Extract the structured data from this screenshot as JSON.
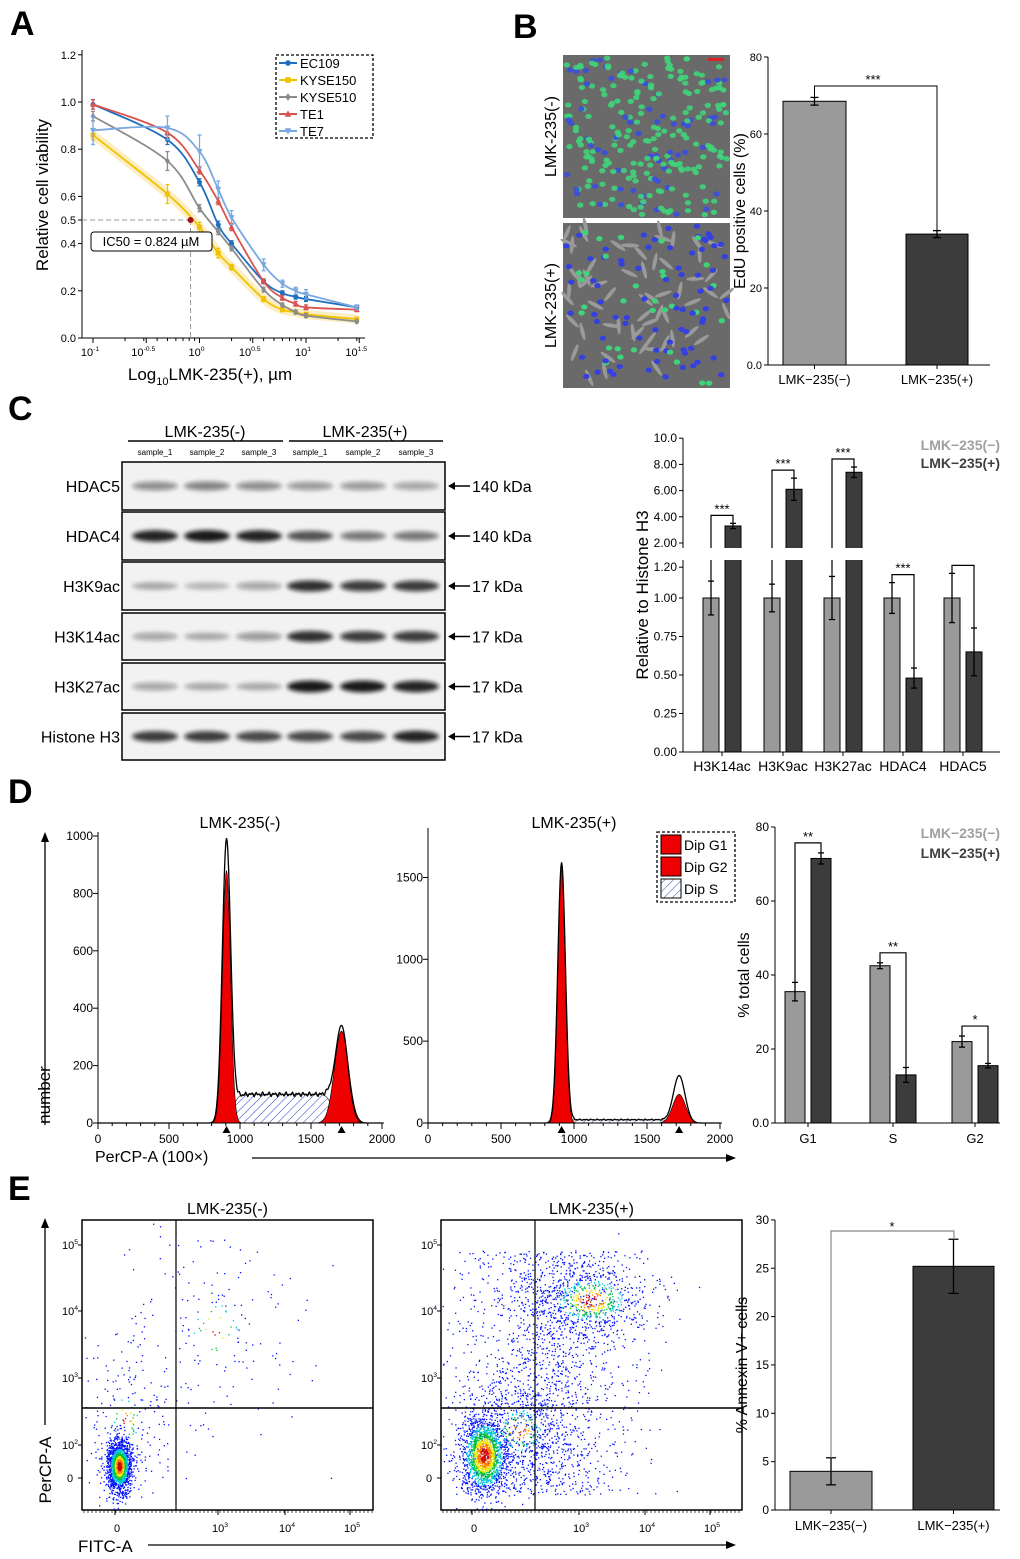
{
  "panels": {
    "A": "A",
    "B": "B",
    "C": "C",
    "D": "D",
    "E": "E"
  },
  "colors": {
    "ec109": "#1f6fc0",
    "kyse150": "#f2c200",
    "kyse510": "#8c8c8c",
    "te1": "#d9534f",
    "te7": "#7aa8e0",
    "control_bar": "#9a9a9a",
    "treated_bar": "#3c3c3c",
    "fit_red": "#ee0000",
    "s_phase_hatch": "#3344cc"
  },
  "chart_data": [
    {
      "id": "A",
      "type": "line",
      "ylabel": "Relative cell viability",
      "xlabel_prefix": "Log",
      "xlabel_sub": "10",
      "xlabel_rest": "LMK-235(+), µm",
      "x_scale": "log10",
      "xlim_log10": [
        -1,
        1.5
      ],
      "ylim": [
        0,
        1.2
      ],
      "yticks": [
        "0.0",
        "0.2",
        "0.4",
        "0.5",
        "0.6",
        "0.8",
        "1.0",
        "1.2"
      ],
      "xticks": [
        {
          "base": "10",
          "exp": "-1"
        },
        {
          "base": "10",
          "exp": "-0.5"
        },
        {
          "base": "10",
          "exp": "0"
        },
        {
          "base": "10",
          "exp": "0.5"
        },
        {
          "base": "10",
          "exp": "1"
        },
        {
          "base": "10",
          "exp": "1.5"
        }
      ],
      "x": [
        0.1,
        0.5,
        1,
        1.5,
        2,
        4,
        6,
        8,
        10,
        30
      ],
      "series": [
        {
          "name": "EC109",
          "marker": "circle",
          "values": [
            0.99,
            0.84,
            0.66,
            0.48,
            0.4,
            0.24,
            0.19,
            0.175,
            0.165,
            0.13
          ],
          "errors": [
            0.02,
            0.02,
            0.015,
            0.015,
            0.012,
            0.01,
            0.01,
            0.01,
            0.01,
            0.008
          ]
        },
        {
          "name": "KYSE150",
          "marker": "square",
          "values": [
            0.86,
            0.61,
            0.47,
            0.36,
            0.3,
            0.165,
            0.12,
            0.11,
            0.1,
            0.08
          ],
          "errors": [
            0.02,
            0.04,
            0.02,
            0.02,
            0.012,
            0.01,
            0.008,
            0.008,
            0.008,
            0.008
          ]
        },
        {
          "name": "KYSE510",
          "marker": "diamond",
          "values": [
            0.94,
            0.75,
            0.55,
            0.45,
            0.38,
            0.205,
            0.14,
            0.11,
            0.095,
            0.07
          ],
          "errors": [
            0.02,
            0.04,
            0.015,
            0.012,
            0.01,
            0.01,
            0.008,
            0.008,
            0.008,
            0.006
          ]
        },
        {
          "name": "TE1",
          "marker": "triangle-up",
          "values": [
            0.99,
            0.87,
            0.71,
            0.58,
            0.47,
            0.24,
            0.17,
            0.145,
            0.13,
            0.12
          ],
          "errors": [
            0.02,
            0.02,
            0.015,
            0.015,
            0.015,
            0.01,
            0.01,
            0.01,
            0.01,
            0.008
          ]
        },
        {
          "name": "TE7",
          "marker": "triangle-down",
          "values": [
            0.88,
            0.89,
            0.79,
            0.63,
            0.51,
            0.31,
            0.23,
            0.2,
            0.185,
            0.13
          ],
          "errors": [
            0.06,
            0.05,
            0.07,
            0.035,
            0.03,
            0.025,
            0.015,
            0.015,
            0.02,
            0.01
          ]
        }
      ],
      "annotation": "IC50 = 0.824 µM",
      "ic50_point": {
        "x": 0.824,
        "y": 0.5
      },
      "legend_position": "top-right"
    },
    {
      "id": "B",
      "type": "bar",
      "image_labels": [
        "LMK-235(-)",
        "LMK-235(+)"
      ],
      "categories": [
        "LMK−235(−)",
        "LMK−235(+)"
      ],
      "values": [
        68.5,
        34
      ],
      "errors": [
        1.0,
        0.9
      ],
      "ylabel": "EdU positive cells (%)",
      "ylim": [
        0,
        80
      ],
      "yticks": [
        "0.0",
        "20",
        "40",
        "60",
        "80"
      ],
      "significance": "***"
    },
    {
      "id": "C-blot",
      "type": "table",
      "groups": [
        "LMK-235(-)",
        "LMK-235(+)"
      ],
      "samples": [
        "sample_1",
        "sample_2",
        "sample_3",
        "sample_1",
        "sample_2",
        "sample_3"
      ],
      "rows": [
        {
          "protein": "HDAC5",
          "size": "140 kDa",
          "band_intensity": [
            0.45,
            0.5,
            0.45,
            0.4,
            0.4,
            0.35
          ]
        },
        {
          "protein": "HDAC4",
          "size": "140 kDa",
          "band_intensity": [
            0.9,
            0.95,
            0.9,
            0.7,
            0.55,
            0.55
          ]
        },
        {
          "protein": "H3K9ac",
          "size": "17 kDa",
          "band_intensity": [
            0.3,
            0.25,
            0.35,
            0.85,
            0.8,
            0.8
          ]
        },
        {
          "protein": "H3K14ac",
          "size": "17 kDa",
          "band_intensity": [
            0.35,
            0.3,
            0.4,
            0.85,
            0.8,
            0.8
          ]
        },
        {
          "protein": "H3K27ac",
          "size": "17 kDa",
          "band_intensity": [
            0.35,
            0.3,
            0.3,
            0.95,
            0.95,
            0.9
          ]
        },
        {
          "protein": "Histone H3",
          "size": "17 kDa",
          "band_intensity": [
            0.8,
            0.8,
            0.75,
            0.75,
            0.75,
            0.9
          ]
        }
      ]
    },
    {
      "id": "C",
      "type": "bar",
      "categories": [
        "H3K14ac",
        "H3K9ac",
        "H3K27ac",
        "HDAC4",
        "HDAC5"
      ],
      "series": [
        {
          "name": "LMK−235(−)",
          "values": [
            1.0,
            1.0,
            1.0,
            1.0,
            1.0
          ],
          "errors": [
            0.11,
            0.09,
            0.14,
            0.1,
            0.16
          ]
        },
        {
          "name": "LMK−235(+)",
          "values": [
            3.3,
            6.1,
            7.4,
            0.48,
            0.65
          ],
          "errors": [
            0.2,
            0.85,
            0.4,
            0.065,
            0.155
          ]
        }
      ],
      "ylabel": "Relative to Histone H3",
      "y_axis_break": [
        1.25,
        2.0
      ],
      "yticks_lower": [
        "0.00",
        "0.25",
        "0.50",
        "0.75",
        "1.00",
        "1.20"
      ],
      "yticks_upper": [
        "2.00",
        "4.00",
        "6.00",
        "8.00",
        "10.0"
      ],
      "significance": [
        "***",
        "***",
        "***",
        "***",
        "**"
      ],
      "legend_position": "top-right"
    },
    {
      "id": "D-left",
      "type": "area",
      "title": "LMK-235(-)",
      "ylabel": "number",
      "xlabel": "PerCP-A (100×)",
      "xlim": [
        0,
        2000
      ],
      "ylim": [
        0,
        1000
      ],
      "xticks": [
        "0",
        "500",
        "1000",
        "1500",
        "2000"
      ],
      "yticks": [
        "0",
        "200",
        "400",
        "600",
        "800",
        "1000"
      ],
      "components": {
        "G1": {
          "mean": 905,
          "sd": 28,
          "height": 880
        },
        "S": {
          "start": 950,
          "end": 1650,
          "height": 100
        },
        "G2": {
          "mean": 1715,
          "sd": 45,
          "height": 320
        }
      },
      "total_peaks": {
        "G1": 985,
        "G2": 340
      }
    },
    {
      "id": "D-right",
      "type": "area",
      "title": "LMK-235(+)",
      "xlim": [
        0,
        2000
      ],
      "ylim": [
        0,
        1700
      ],
      "xticks": [
        "0",
        "500",
        "1000",
        "1500",
        "2000"
      ],
      "yticks": [
        "0",
        "500",
        "1000",
        "1500"
      ],
      "components": {
        "G1": {
          "mean": 915,
          "sd": 25,
          "height": 1580
        },
        "S": {
          "start": 950,
          "end": 1650,
          "height": 20
        },
        "G2": {
          "mean": 1720,
          "sd": 40,
          "height": 175
        }
      },
      "total_peaks": {
        "G1": 1590,
        "G2": 290
      },
      "legend": [
        "Dip G1",
        "Dip G2",
        "Dip S"
      ],
      "legend_position": "top-right"
    },
    {
      "id": "D-bar",
      "type": "bar",
      "categories": [
        "G1",
        "S",
        "G2"
      ],
      "series": [
        {
          "name": "LMK−235(−)",
          "values": [
            35.5,
            42.5,
            22
          ],
          "errors": [
            2.5,
            0.8,
            1.5
          ]
        },
        {
          "name": "LMK−235(+)",
          "values": [
            71.5,
            13,
            15.5
          ],
          "errors": [
            1.5,
            2.0,
            0.6
          ]
        }
      ],
      "ylabel": "% total cells",
      "ylim": [
        0,
        80
      ],
      "yticks": [
        "0.0",
        "20",
        "40",
        "60",
        "80"
      ],
      "significance": [
        "**",
        "**",
        "*"
      ]
    },
    {
      "id": "E-left",
      "type": "scatter",
      "title": "LMK-235(-)",
      "xlabel": "FITC-A",
      "ylabel": "PerCP-A",
      "x_scale": "biexponential",
      "y_scale": "biexponential",
      "xticks": [
        {
          "base": "0",
          "exp": ""
        },
        {
          "base": "10",
          "exp": "3"
        },
        {
          "base": "10",
          "exp": "4"
        },
        {
          "base": "10",
          "exp": "5"
        }
      ],
      "yticks": [
        {
          "base": "0",
          "exp": ""
        },
        {
          "base": "10",
          "exp": "2"
        },
        {
          "base": "10",
          "exp": "3"
        },
        {
          "base": "10",
          "exp": "4"
        },
        {
          "base": "10",
          "exp": "5"
        }
      ]
    },
    {
      "id": "E-right",
      "type": "scatter",
      "title": "LMK-235(+)",
      "x_scale": "biexponential",
      "y_scale": "biexponential",
      "xticks": [
        {
          "base": "0",
          "exp": ""
        },
        {
          "base": "10",
          "exp": "3"
        },
        {
          "base": "10",
          "exp": "4"
        },
        {
          "base": "10",
          "exp": "5"
        }
      ],
      "yticks": [
        {
          "base": "0",
          "exp": ""
        },
        {
          "base": "10",
          "exp": "2"
        },
        {
          "base": "10",
          "exp": "3"
        },
        {
          "base": "10",
          "exp": "4"
        },
        {
          "base": "10",
          "exp": "5"
        }
      ]
    },
    {
      "id": "E-bar",
      "type": "bar",
      "categories": [
        "LMK−235(−)",
        "LMK−235(+)"
      ],
      "values": [
        4.0,
        25.2
      ],
      "errors": [
        1.4,
        2.8
      ],
      "ylabel": "% Annexin V+ cells",
      "ylim": [
        0,
        30
      ],
      "yticks": [
        "0",
        "5",
        "10",
        "15",
        "20",
        "25",
        "30"
      ],
      "significance": "*"
    }
  ]
}
